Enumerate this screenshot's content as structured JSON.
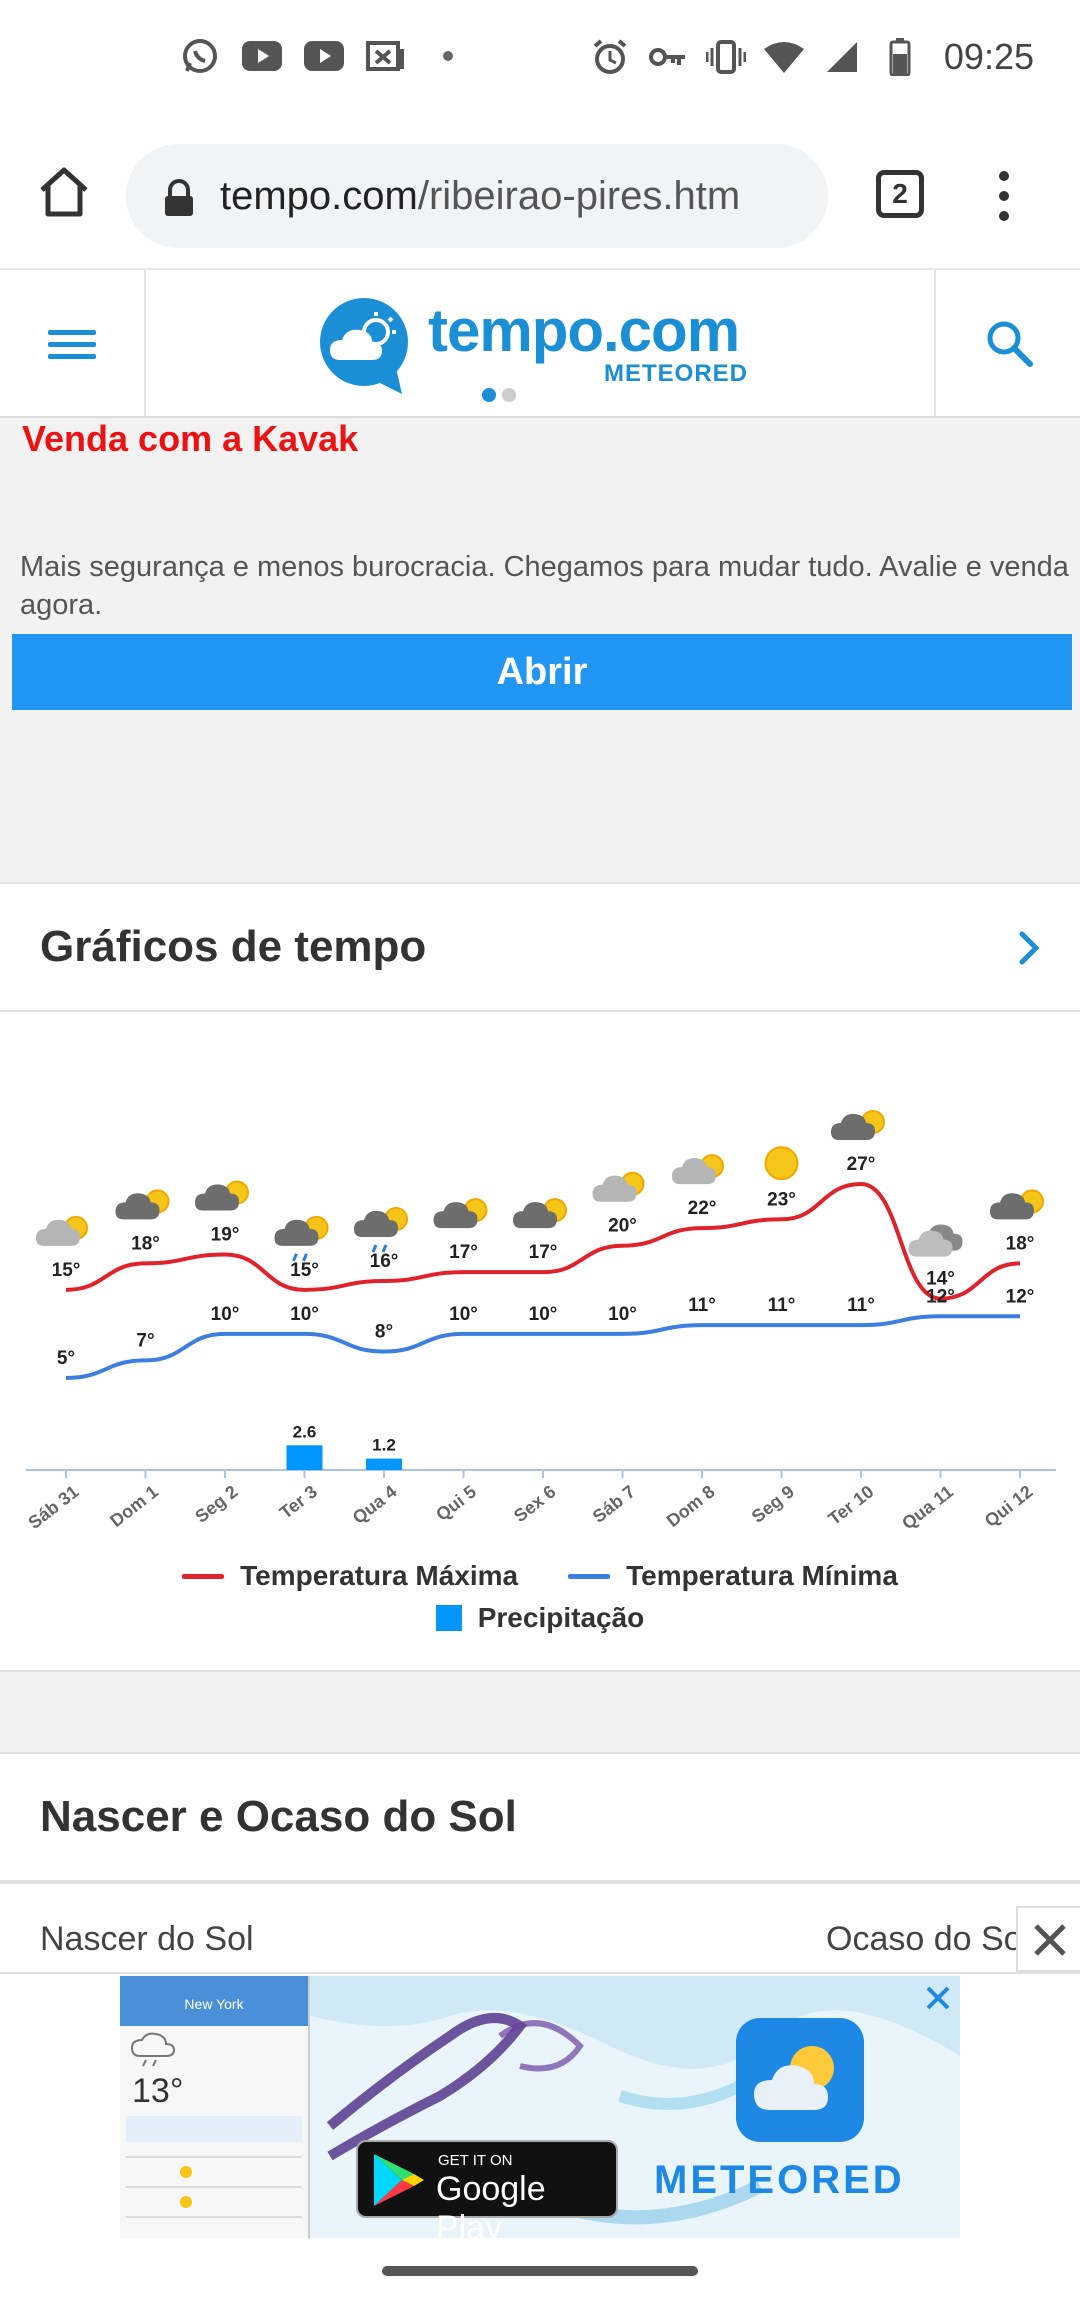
{
  "status": {
    "time": "09:25"
  },
  "browser": {
    "url_domain": "tempo.com",
    "url_path": "/ribeirao-pires.htm",
    "tab_count": "2"
  },
  "site": {
    "logo_text": "tempo.com",
    "logo_sub": "METEORED"
  },
  "ad": {
    "title": "Venda com a Kavak",
    "description": "Mais segurança e menos burocracia. Chegamos para mudar tudo. Avalie e venda agora.",
    "button": "Abrir"
  },
  "sections": {
    "charts_title": "Gráficos de tempo",
    "sun_title": "Nascer e Ocaso do Sol"
  },
  "sun": {
    "sunrise_label": "Nascer do Sol",
    "sunset_label": "Ocaso do Sol"
  },
  "banner": {
    "city": "New York",
    "temp": "13°",
    "gp_small": "GET IT ON",
    "gp_big": "Google Play",
    "brand": "METEORED"
  },
  "chart_data": {
    "type": "line",
    "categories": [
      "Sáb 31",
      "Dom 1",
      "Seg 2",
      "Ter 3",
      "Qua 4",
      "Qui 5",
      "Sex 6",
      "Sáb 7",
      "Dom 8",
      "Seg 9",
      "Ter 10",
      "Qua 11",
      "Qui 12"
    ],
    "series": [
      {
        "name": "Temperatura Máxima",
        "color": "#e0222a",
        "values": [
          15,
          18,
          19,
          15,
          16,
          17,
          17,
          20,
          22,
          23,
          27,
          14,
          18
        ]
      },
      {
        "name": "Temperatura Mínima",
        "color": "#3d7fe0",
        "values": [
          5,
          7,
          10,
          10,
          8,
          10,
          10,
          10,
          11,
          11,
          11,
          12,
          12
        ]
      },
      {
        "name": "Precipitação",
        "color": "#0096ff",
        "type": "bar",
        "values": [
          0,
          0,
          0,
          2.6,
          1.2,
          0,
          0,
          0,
          0,
          0,
          0,
          0,
          0
        ]
      }
    ],
    "icons": [
      "partly-cloudy",
      "cloudy-sun",
      "cloudy-sun",
      "cloud-rain",
      "cloud-rain",
      "cloudy-sun",
      "cloudy-sun",
      "partly-cloudy",
      "partly-cloudy",
      "sun",
      "cloudy-sun",
      "cloud-grey",
      "cloudy-sun"
    ],
    "legend_position": "bottom"
  }
}
